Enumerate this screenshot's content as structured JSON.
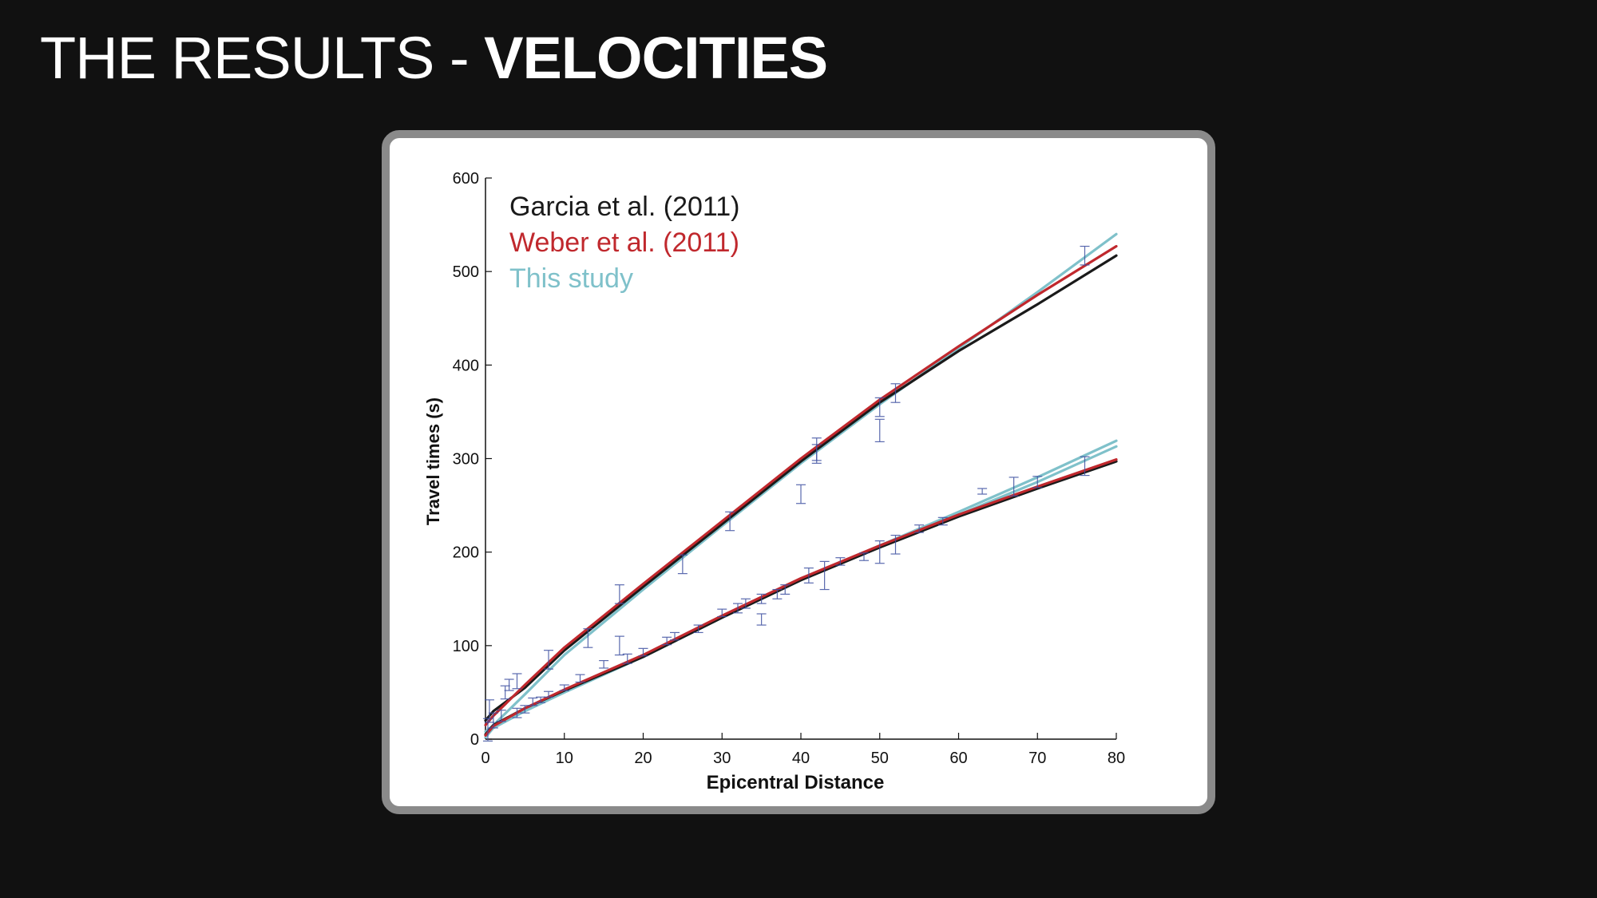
{
  "slide": {
    "title_thin": "THE RESULTS - ",
    "title_bold": "VELOCITIES"
  },
  "colors": {
    "background": "#111111",
    "frame": "#8a8a8a",
    "garcia": "#1a1a1a",
    "weber": "#c0282d",
    "this_study": "#7fc1ca",
    "error_bars": "#3d4fa0"
  },
  "chart_data": {
    "type": "line",
    "title": "",
    "xlabel": "Epicentral Distance",
    "ylabel": "Travel times (s)",
    "xlim": [
      0,
      80
    ],
    "ylim": [
      0,
      600
    ],
    "xticks": [
      0,
      10,
      20,
      30,
      40,
      50,
      60,
      70,
      80
    ],
    "yticks": [
      0,
      100,
      200,
      300,
      400,
      500,
      600
    ],
    "grid": false,
    "legend": {
      "placement": "top-left",
      "entries": [
        "Garcia et al. (2011)",
        "Weber et al. (2011)",
        "This study"
      ]
    },
    "series": [
      {
        "name": "Garcia et al. (2011)",
        "color": "#1a1a1a",
        "branch": "P",
        "x": [
          0,
          1,
          5,
          10,
          20,
          30,
          40,
          50,
          60,
          70,
          80
        ],
        "y": [
          20,
          30,
          55,
          95,
          163,
          230,
          297,
          360,
          415,
          465,
          517
        ]
      },
      {
        "name": "Weber et al. (2011)",
        "color": "#c0282d",
        "branch": "P",
        "x": [
          0,
          1,
          5,
          10,
          20,
          30,
          40,
          50,
          60,
          70,
          80
        ],
        "y": [
          15,
          25,
          58,
          98,
          166,
          233,
          300,
          363,
          420,
          475,
          527
        ]
      },
      {
        "name": "This study",
        "color": "#7fc1ca",
        "branch": "P",
        "x": [
          0,
          1,
          5,
          10,
          20,
          30,
          40,
          50,
          60,
          70,
          80
        ],
        "y": [
          8,
          15,
          48,
          90,
          160,
          228,
          295,
          358,
          418,
          478,
          540
        ]
      },
      {
        "name": "Garcia et al. (2011)",
        "color": "#1a1a1a",
        "branch": "S",
        "x": [
          0,
          1,
          5,
          10,
          20,
          30,
          40,
          50,
          60,
          70,
          80
        ],
        "y": [
          5,
          15,
          33,
          52,
          88,
          130,
          170,
          205,
          238,
          268,
          297
        ]
      },
      {
        "name": "Weber et al. (2011)",
        "color": "#c0282d",
        "branch": "S",
        "x": [
          0,
          1,
          5,
          10,
          20,
          30,
          40,
          50,
          60,
          70,
          80
        ],
        "y": [
          4,
          14,
          33,
          53,
          90,
          132,
          172,
          207,
          240,
          270,
          299
        ]
      },
      {
        "name": "This study",
        "color": "#7fc1ca",
        "branch": "S",
        "x": [
          0,
          1,
          5,
          10,
          20,
          30,
          40,
          50,
          60,
          70,
          80
        ],
        "y": [
          2,
          12,
          30,
          50,
          88,
          130,
          170,
          207,
          243,
          280,
          319
        ]
      },
      {
        "name": "This study",
        "color": "#7fc1ca",
        "branch": "S2",
        "x": [
          60,
          70,
          80
        ],
        "y": [
          240,
          275,
          313
        ]
      }
    ],
    "error_bars": [
      {
        "x": 0.3,
        "y": 10,
        "err": 12
      },
      {
        "x": 0.5,
        "y": 30,
        "err": 12
      },
      {
        "x": 1,
        "y": 20,
        "err": 8
      },
      {
        "x": 2,
        "y": 25,
        "err": 6
      },
      {
        "x": 2.5,
        "y": 50,
        "err": 7
      },
      {
        "x": 3,
        "y": 58,
        "err": 6
      },
      {
        "x": 4,
        "y": 62,
        "err": 8
      },
      {
        "x": 4,
        "y": 28,
        "err": 5
      },
      {
        "x": 5,
        "y": 32,
        "err": 4
      },
      {
        "x": 6,
        "y": 40,
        "err": 4
      },
      {
        "x": 7,
        "y": 42,
        "err": 3
      },
      {
        "x": 8,
        "y": 48,
        "err": 3
      },
      {
        "x": 8,
        "y": 85,
        "err": 10
      },
      {
        "x": 10,
        "y": 55,
        "err": 3
      },
      {
        "x": 12,
        "y": 65,
        "err": 4
      },
      {
        "x": 13,
        "y": 108,
        "err": 10
      },
      {
        "x": 15,
        "y": 80,
        "err": 4
      },
      {
        "x": 17,
        "y": 155,
        "err": 10
      },
      {
        "x": 17,
        "y": 100,
        "err": 10
      },
      {
        "x": 18,
        "y": 86,
        "err": 5
      },
      {
        "x": 20,
        "y": 93,
        "err": 4
      },
      {
        "x": 23,
        "y": 105,
        "err": 4
      },
      {
        "x": 24,
        "y": 110,
        "err": 4
      },
      {
        "x": 25,
        "y": 187,
        "err": 10
      },
      {
        "x": 27,
        "y": 118,
        "err": 4
      },
      {
        "x": 30,
        "y": 135,
        "err": 4
      },
      {
        "x": 31,
        "y": 233,
        "err": 10
      },
      {
        "x": 32,
        "y": 140,
        "err": 5
      },
      {
        "x": 33,
        "y": 145,
        "err": 5
      },
      {
        "x": 35,
        "y": 150,
        "err": 5
      },
      {
        "x": 35,
        "y": 128,
        "err": 6
      },
      {
        "x": 37,
        "y": 155,
        "err": 5
      },
      {
        "x": 38,
        "y": 160,
        "err": 5
      },
      {
        "x": 40,
        "y": 262,
        "err": 10
      },
      {
        "x": 41,
        "y": 175,
        "err": 8
      },
      {
        "x": 42,
        "y": 305,
        "err": 10
      },
      {
        "x": 43,
        "y": 175,
        "err": 15
      },
      {
        "x": 42,
        "y": 310,
        "err": 12
      },
      {
        "x": 45,
        "y": 190,
        "err": 4
      },
      {
        "x": 48,
        "y": 195,
        "err": 4
      },
      {
        "x": 50,
        "y": 355,
        "err": 10
      },
      {
        "x": 50,
        "y": 330,
        "err": 12
      },
      {
        "x": 50,
        "y": 200,
        "err": 12
      },
      {
        "x": 52,
        "y": 370,
        "err": 10
      },
      {
        "x": 52,
        "y": 208,
        "err": 10
      },
      {
        "x": 55,
        "y": 225,
        "err": 4
      },
      {
        "x": 58,
        "y": 233,
        "err": 4
      },
      {
        "x": 63,
        "y": 265,
        "err": 3
      },
      {
        "x": 67,
        "y": 270,
        "err": 10
      },
      {
        "x": 70,
        "y": 275,
        "err": 6
      },
      {
        "x": 76,
        "y": 292,
        "err": 10
      },
      {
        "x": 76,
        "y": 517,
        "err": 10
      }
    ]
  }
}
